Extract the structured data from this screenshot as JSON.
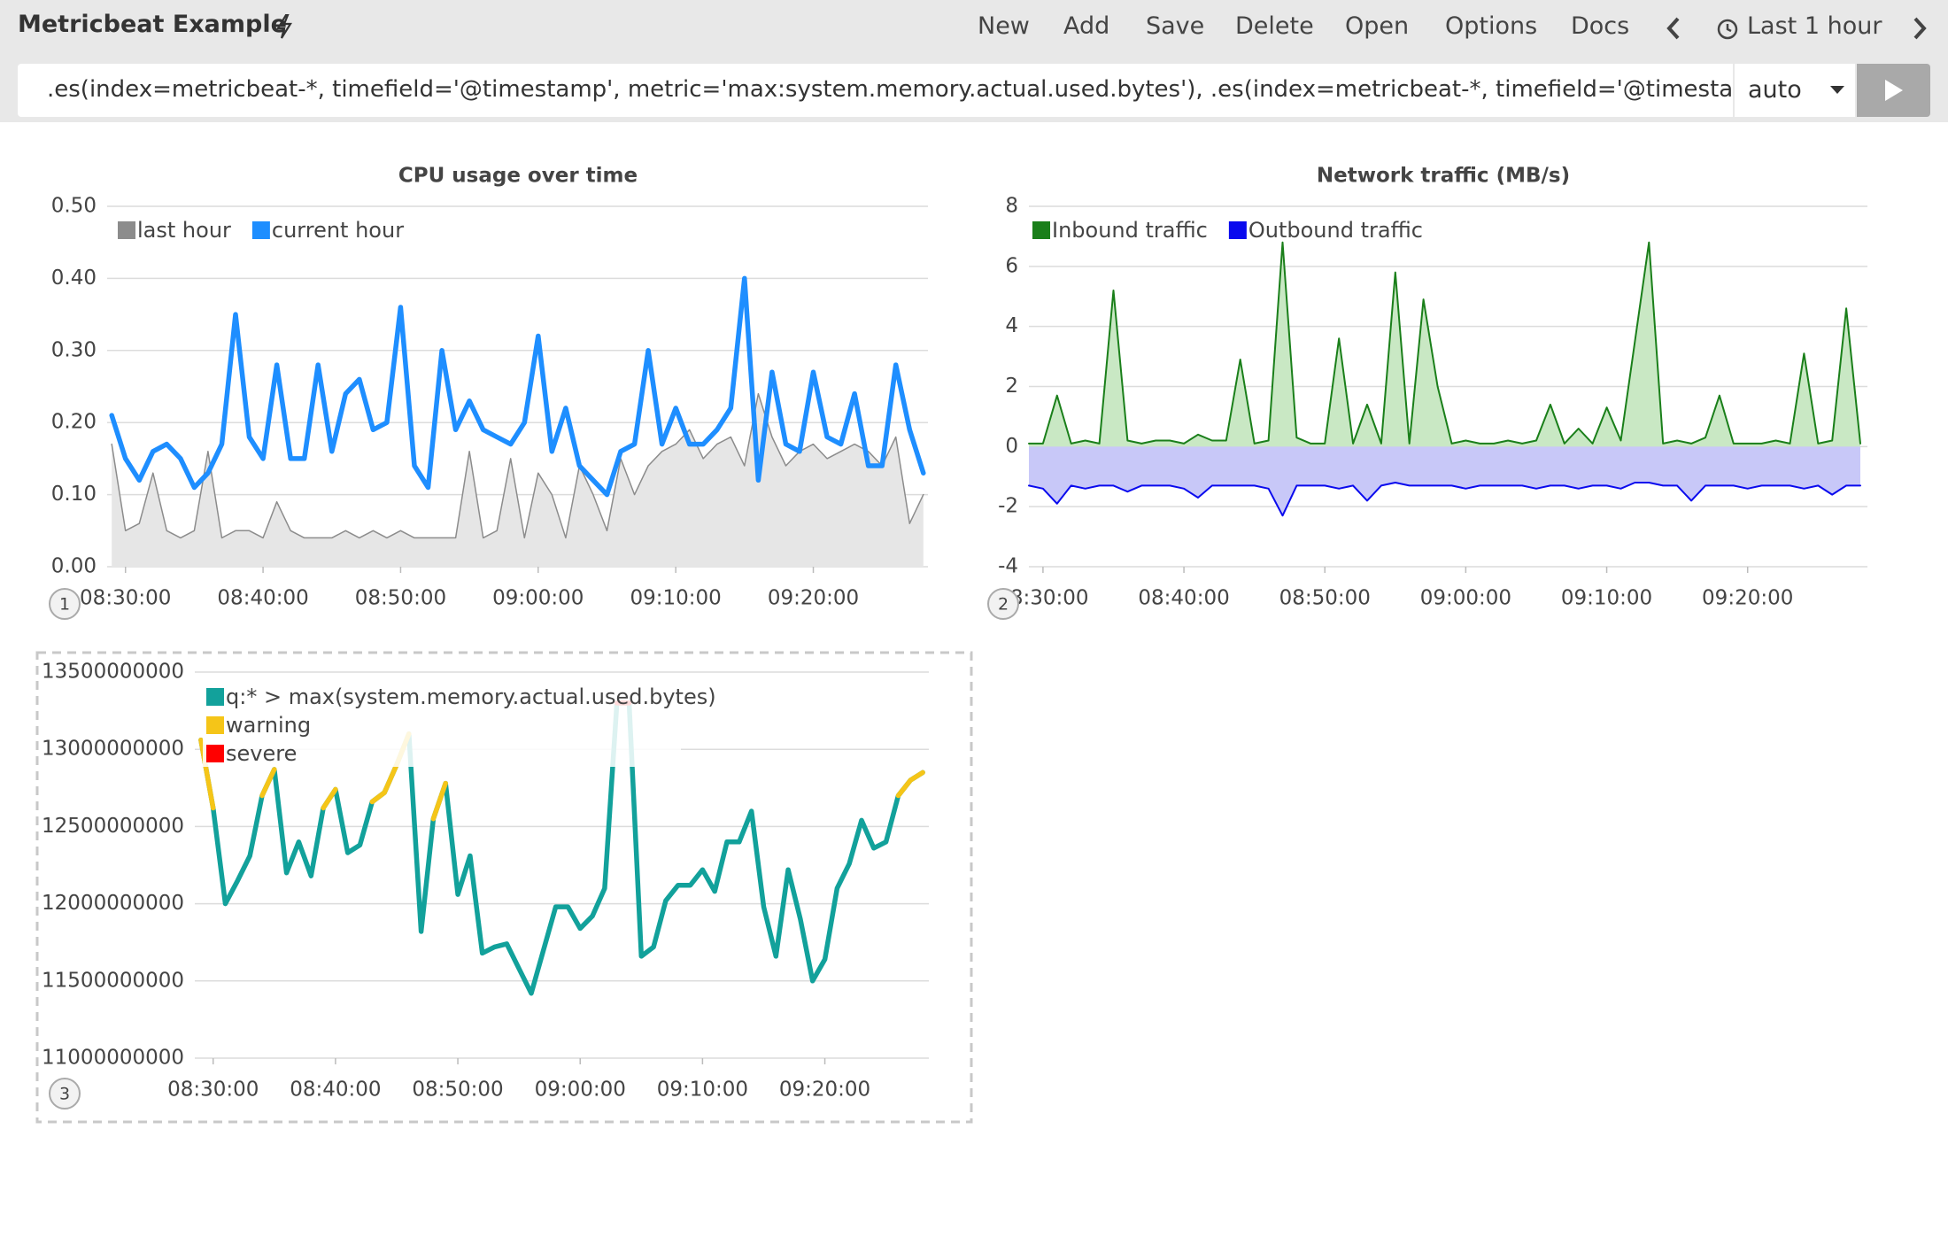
{
  "toolbar": {
    "title": "Metricbeat Example",
    "menu": [
      "New",
      "Add",
      "Save",
      "Delete",
      "Open",
      "Options",
      "Docs"
    ],
    "time_range": "Last 1 hour"
  },
  "query": {
    "expression": ".es(index=metricbeat-*, timefield='@timestamp', metric='max:system.memory.actual.used.bytes'), .es(index=metricbeat-*, timefield='@timestan",
    "interval": "auto"
  },
  "panel_numbers": [
    "1",
    "2",
    "3"
  ],
  "chart_data": [
    {
      "type": "line",
      "title": "CPU usage over time",
      "x": [
        "08:29:00",
        "08:30:00",
        "08:31:00",
        "08:32:00",
        "08:33:00",
        "08:34:00",
        "08:35:00",
        "08:36:00",
        "08:37:00",
        "08:38:00",
        "08:39:00",
        "08:40:00",
        "08:41:00",
        "08:42:00",
        "08:43:00",
        "08:44:00",
        "08:45:00",
        "08:46:00",
        "08:47:00",
        "08:48:00",
        "08:49:00",
        "08:50:00",
        "08:51:00",
        "08:52:00",
        "08:53:00",
        "08:54:00",
        "08:55:00",
        "08:56:00",
        "08:57:00",
        "08:58:00",
        "08:59:00",
        "09:00:00",
        "09:01:00",
        "09:02:00",
        "09:03:00",
        "09:04:00",
        "09:05:00",
        "09:06:00",
        "09:07:00",
        "09:08:00",
        "09:09:00",
        "09:10:00",
        "09:11:00",
        "09:12:00",
        "09:13:00",
        "09:14:00",
        "09:15:00",
        "09:16:00",
        "09:17:00",
        "09:18:00",
        "09:19:00",
        "09:20:00",
        "09:21:00",
        "09:22:00",
        "09:23:00",
        "09:24:00",
        "09:25:00",
        "09:26:00",
        "09:27:00",
        "09:28:00"
      ],
      "series": [
        {
          "name": "last hour",
          "color": "#8c8c8c",
          "fill": "#e6e6e6",
          "values": [
            0.17,
            0.05,
            0.06,
            0.13,
            0.05,
            0.04,
            0.05,
            0.16,
            0.04,
            0.05,
            0.05,
            0.04,
            0.09,
            0.05,
            0.04,
            0.04,
            0.04,
            0.05,
            0.04,
            0.05,
            0.04,
            0.05,
            0.04,
            0.04,
            0.04,
            0.04,
            0.16,
            0.04,
            0.05,
            0.15,
            0.04,
            0.13,
            0.1,
            0.04,
            0.14,
            0.1,
            0.05,
            0.15,
            0.1,
            0.14,
            0.16,
            0.17,
            0.19,
            0.15,
            0.17,
            0.18,
            0.14,
            0.24,
            0.18,
            0.14,
            0.16,
            0.17,
            0.15,
            0.16,
            0.17,
            0.16,
            0.14,
            0.18,
            0.06,
            0.1
          ]
        },
        {
          "name": "current hour",
          "color": "#1e8eff",
          "values": [
            0.21,
            0.15,
            0.12,
            0.16,
            0.17,
            0.15,
            0.11,
            0.13,
            0.17,
            0.35,
            0.18,
            0.15,
            0.28,
            0.15,
            0.15,
            0.28,
            0.16,
            0.24,
            0.26,
            0.19,
            0.2,
            0.36,
            0.14,
            0.11,
            0.3,
            0.19,
            0.23,
            0.19,
            0.18,
            0.17,
            0.2,
            0.32,
            0.16,
            0.22,
            0.14,
            0.12,
            0.1,
            0.16,
            0.17,
            0.3,
            0.17,
            0.22,
            0.17,
            0.17,
            0.19,
            0.22,
            0.4,
            0.12,
            0.27,
            0.17,
            0.16,
            0.27,
            0.18,
            0.17,
            0.24,
            0.14,
            0.14,
            0.28,
            0.19,
            0.13
          ]
        }
      ],
      "xlim": [
        "08:28:40",
        "09:28:20"
      ],
      "xticks": [
        "08:30:00",
        "08:40:00",
        "08:50:00",
        "09:00:00",
        "09:10:00",
        "09:20:00"
      ],
      "ylim": [
        0,
        0.5
      ],
      "yticks": [
        {
          "value": 0,
          "label": "0.00"
        },
        {
          "value": 0.1,
          "label": "0.10"
        },
        {
          "value": 0.2,
          "label": "0.20"
        },
        {
          "value": 0.3,
          "label": "0.30"
        },
        {
          "value": 0.4,
          "label": "0.40"
        },
        {
          "value": 0.5,
          "label": "0.50"
        }
      ],
      "grid": true,
      "legend": "top-left"
    },
    {
      "type": "area",
      "title": "Network traffic (MB/s)",
      "x": [
        "08:29:00",
        "08:30:00",
        "08:31:00",
        "08:32:00",
        "08:33:00",
        "08:34:00",
        "08:35:00",
        "08:36:00",
        "08:37:00",
        "08:38:00",
        "08:39:00",
        "08:40:00",
        "08:41:00",
        "08:42:00",
        "08:43:00",
        "08:44:00",
        "08:45:00",
        "08:46:00",
        "08:47:00",
        "08:48:00",
        "08:49:00",
        "08:50:00",
        "08:51:00",
        "08:52:00",
        "08:53:00",
        "08:54:00",
        "08:55:00",
        "08:56:00",
        "08:57:00",
        "08:58:00",
        "08:59:00",
        "09:00:00",
        "09:01:00",
        "09:02:00",
        "09:03:00",
        "09:04:00",
        "09:05:00",
        "09:06:00",
        "09:07:00",
        "09:08:00",
        "09:09:00",
        "09:10:00",
        "09:11:00",
        "09:12:00",
        "09:13:00",
        "09:14:00",
        "09:15:00",
        "09:16:00",
        "09:17:00",
        "09:18:00",
        "09:19:00",
        "09:20:00",
        "09:21:00",
        "09:22:00",
        "09:23:00",
        "09:24:00",
        "09:25:00",
        "09:26:00",
        "09:27:00",
        "09:28:00"
      ],
      "series": [
        {
          "name": "Inbound traffic",
          "color": "#1a7f1a",
          "fill": "#c9e8c4",
          "values": [
            0.1,
            0.1,
            1.7,
            0.1,
            0.2,
            0.1,
            5.2,
            0.2,
            0.1,
            0.2,
            0.2,
            0.1,
            0.4,
            0.2,
            0.2,
            2.9,
            0.1,
            0.2,
            6.8,
            0.3,
            0.1,
            0.1,
            3.6,
            0.1,
            1.4,
            0.1,
            5.8,
            0.1,
            4.9,
            2.0,
            0.1,
            0.2,
            0.1,
            0.1,
            0.2,
            0.1,
            0.2,
            1.4,
            0.1,
            0.6,
            0.1,
            1.3,
            0.2,
            3.5,
            6.8,
            0.1,
            0.2,
            0.1,
            0.3,
            1.7,
            0.1,
            0.1,
            0.1,
            0.2,
            0.1,
            3.1,
            0.1,
            0.2,
            4.6,
            0.1
          ]
        },
        {
          "name": "Outbound traffic",
          "color": "#0a0aee",
          "fill": "#c8c8f8",
          "values": [
            -1.3,
            -1.4,
            -1.9,
            -1.3,
            -1.4,
            -1.3,
            -1.3,
            -1.5,
            -1.3,
            -1.3,
            -1.3,
            -1.4,
            -1.7,
            -1.3,
            -1.3,
            -1.3,
            -1.3,
            -1.4,
            -2.3,
            -1.3,
            -1.3,
            -1.3,
            -1.4,
            -1.3,
            -1.8,
            -1.3,
            -1.2,
            -1.3,
            -1.3,
            -1.3,
            -1.3,
            -1.4,
            -1.3,
            -1.3,
            -1.3,
            -1.3,
            -1.4,
            -1.3,
            -1.3,
            -1.4,
            -1.3,
            -1.3,
            -1.4,
            -1.2,
            -1.2,
            -1.3,
            -1.3,
            -1.8,
            -1.3,
            -1.3,
            -1.3,
            -1.4,
            -1.3,
            -1.3,
            -1.3,
            -1.4,
            -1.3,
            -1.6,
            -1.3,
            -1.3
          ]
        }
      ],
      "xlim": [
        "08:29:00",
        "09:28:30"
      ],
      "xticks": [
        "08:30:00",
        "08:40:00",
        "08:50:00",
        "09:00:00",
        "09:10:00",
        "09:20:00"
      ],
      "ylim": [
        -4,
        8
      ],
      "yticks": [
        -4,
        -2,
        0,
        2,
        4,
        6,
        8
      ],
      "grid": true,
      "legend": "top-left"
    },
    {
      "type": "line",
      "x": [
        "08:29:00",
        "08:30:00",
        "08:31:00",
        "08:32:00",
        "08:33:00",
        "08:34:00",
        "08:35:00",
        "08:36:00",
        "08:37:00",
        "08:38:00",
        "08:39:00",
        "08:40:00",
        "08:41:00",
        "08:42:00",
        "08:43:00",
        "08:44:00",
        "08:45:00",
        "08:46:00",
        "08:47:00",
        "08:48:00",
        "08:49:00",
        "08:50:00",
        "08:51:00",
        "08:52:00",
        "08:53:00",
        "08:54:00",
        "08:55:00",
        "08:56:00",
        "08:57:00",
        "08:58:00",
        "08:59:00",
        "09:00:00",
        "09:01:00",
        "09:02:00",
        "09:03:00",
        "09:04:00",
        "09:05:00",
        "09:06:00",
        "09:07:00",
        "09:08:00",
        "09:09:00",
        "09:10:00",
        "09:11:00",
        "09:12:00",
        "09:13:00",
        "09:14:00",
        "09:15:00",
        "09:16:00",
        "09:17:00",
        "09:18:00",
        "09:19:00",
        "09:20:00",
        "09:21:00",
        "09:22:00",
        "09:23:00",
        "09:24:00",
        "09:25:00",
        "09:26:00",
        "09:27:00",
        "09:28:00"
      ],
      "series": [
        {
          "name": "q:* > max(system.memory.actual.used.bytes)",
          "color": "#12a19b",
          "values": [
            13060000000,
            12620000000,
            12000000000,
            12150000000,
            12310000000,
            12700000000,
            12870000000,
            12200000000,
            12400000000,
            12180000000,
            12620000000,
            12740000000,
            12330000000,
            12380000000,
            12660000000,
            12720000000,
            12900000000,
            13100000000,
            11820000000,
            12550000000,
            12780000000,
            12060000000,
            12310000000,
            11680000000,
            11720000000,
            11740000000,
            11580000000,
            11420000000,
            11700000000,
            11980000000,
            11980000000,
            11840000000,
            11920000000,
            12100000000,
            13300000000,
            13300000000,
            11660000000,
            11720000000,
            12020000000,
            12120000000,
            12120000000,
            12220000000,
            12080000000,
            12400000000,
            12400000000,
            12600000000,
            11980000000,
            11660000000,
            12220000000,
            11900000000,
            11500000000,
            11640000000,
            12100000000,
            12260000000,
            12540000000,
            12360000000,
            12400000000,
            12700000000,
            12800000000,
            12850000000
          ]
        },
        {
          "name": "warning",
          "color": "#f5c518",
          "values": [
            13060000000,
            12620000000,
            null,
            null,
            null,
            12700000000,
            12870000000,
            null,
            null,
            null,
            12620000000,
            12740000000,
            null,
            null,
            12660000000,
            12720000000,
            12900000000,
            13100000000,
            null,
            12550000000,
            12780000000,
            null,
            null,
            null,
            null,
            null,
            null,
            null,
            null,
            null,
            null,
            null,
            null,
            null,
            13300000000,
            13300000000,
            null,
            null,
            null,
            null,
            null,
            null,
            null,
            null,
            null,
            12600000000,
            null,
            null,
            null,
            null,
            null,
            null,
            null,
            null,
            12540000000,
            null,
            null,
            12700000000,
            12800000000,
            12850000000
          ]
        },
        {
          "name": "severe",
          "color": "#ff0000",
          "values": [
            13060000000,
            null,
            null,
            null,
            null,
            null,
            null,
            null,
            null,
            null,
            null,
            null,
            null,
            null,
            null,
            null,
            null,
            13100000000,
            null,
            null,
            null,
            null,
            null,
            null,
            null,
            null,
            null,
            null,
            null,
            null,
            null,
            null,
            null,
            null,
            13300000000,
            13300000000,
            null,
            null,
            null,
            null,
            null,
            null,
            null,
            null,
            null,
            null,
            null,
            null,
            null,
            null,
            null,
            null,
            null,
            null,
            null,
            null,
            null,
            null,
            null,
            null
          ]
        }
      ],
      "xlim": [
        "08:28:30",
        "09:28:30"
      ],
      "xticks": [
        "08:30:00",
        "08:40:00",
        "08:50:00",
        "09:00:00",
        "09:10:00",
        "09:20:00"
      ],
      "ylim": [
        11000000000,
        13500000000
      ],
      "yticks": [
        11000000000,
        11500000000,
        12000000000,
        12500000000,
        13000000000,
        13500000000
      ],
      "grid": true,
      "legend": "top-left"
    }
  ]
}
